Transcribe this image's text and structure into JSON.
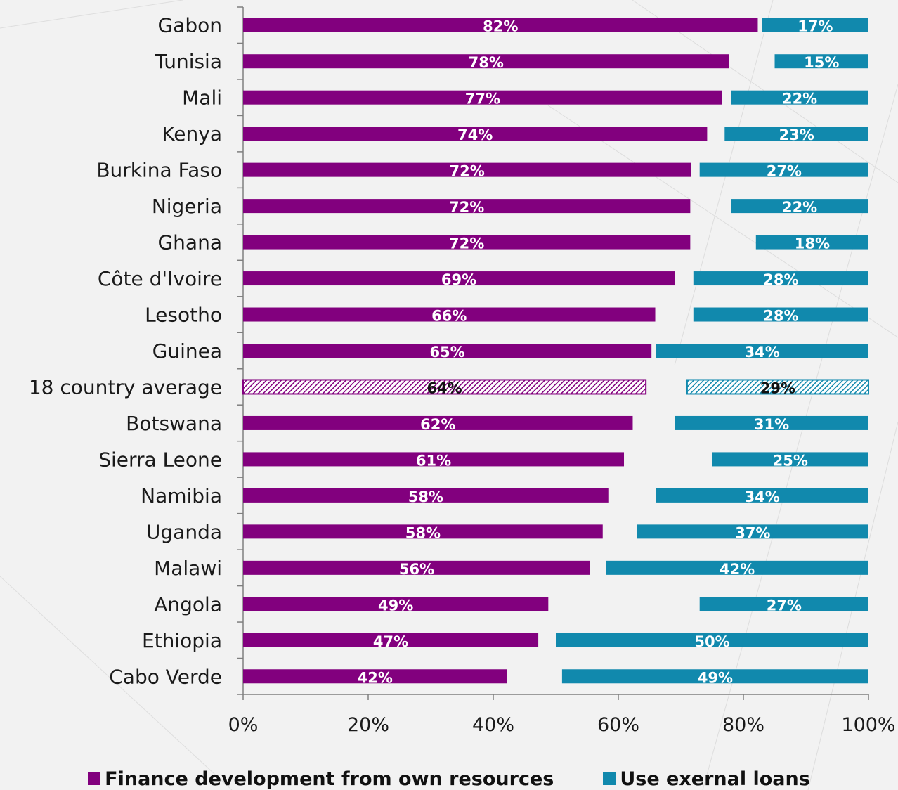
{
  "chart_data": {
    "type": "bar",
    "orientation": "horizontal",
    "stacked": false,
    "categories": [
      "Gabon",
      "Tunisia",
      "Mali",
      "Kenya",
      "Burkina Faso",
      "Nigeria",
      "Ghana",
      "Côte d'Ivoire",
      "Lesotho",
      "Guinea",
      "18 country average",
      "Botswana",
      "Sierra Leone",
      "Namibia",
      "Uganda",
      "Malawi",
      "Angola",
      "Ethiopia",
      "Cabo Verde"
    ],
    "series": [
      {
        "name": "Finance development from own resources",
        "color": "#82007e",
        "values": [
          82.3,
          77.7,
          76.6,
          74.2,
          71.6,
          71.5,
          71.5,
          69.0,
          65.9,
          65.3,
          64.4,
          62.3,
          60.9,
          58.4,
          57.5,
          55.5,
          48.8,
          47.2,
          42.2
        ],
        "labels": [
          "82%",
          "78%",
          "77%",
          "74%",
          "72%",
          "72%",
          "72%",
          "69%",
          "66%",
          "65%",
          "64%",
          "62%",
          "61%",
          "58%",
          "58%",
          "56%",
          "49%",
          "47%",
          "42%"
        ]
      },
      {
        "name": "Use exernal loans",
        "color": "#1189ad",
        "values": [
          17,
          15,
          22,
          23,
          27,
          22,
          18,
          28,
          28,
          34,
          29,
          31,
          25,
          34,
          37,
          42,
          27,
          50,
          49
        ],
        "labels": [
          "17%",
          "15%",
          "22%",
          "23%",
          "27%",
          "22%",
          "18%",
          "28%",
          "28%",
          "34%",
          "29%",
          "31%",
          "25%",
          "34%",
          "37%",
          "42%",
          "27%",
          "50%",
          "49%"
        ]
      }
    ],
    "highlight_category": "18 country average",
    "highlight_pattern": "hatched",
    "xlim": [
      0,
      100
    ],
    "xticks": [
      "0%",
      "20%",
      "40%",
      "60%",
      "80%",
      "100%"
    ],
    "legend_position": "bottom",
    "grid": false,
    "title": "",
    "xlabel": "",
    "ylabel": ""
  }
}
